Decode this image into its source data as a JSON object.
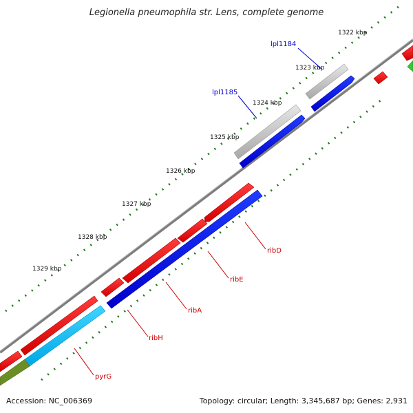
{
  "title": "Legionella pneumophila str. Lens, complete genome",
  "accession": "Accession: NC_006369",
  "topology": "Topology: circular; Length: 3,345,687 bp; Genes: 2,931",
  "colors": {
    "backbone": "#7a7a7a",
    "tick": "#1f7a1f",
    "cds_forward": "#ff0000",
    "cds_reverse": "#0000ff",
    "trna_or_other": "#b0b0b0",
    "pyrG_segment": "#00bfff",
    "olive_segment": "#6b8e23",
    "green_feature": "#33cc33",
    "label_blue": "#0000cc",
    "label_red": "#cc0000"
  },
  "tick_labels": [
    "1322 kbp",
    "1323 kbp",
    "1324 kbp",
    "1325 kbp",
    "1326 kbp",
    "1327 kbp",
    "1328 kbp",
    "1329 kbp"
  ],
  "gene_labels": [
    {
      "name": "lpl1184",
      "color": "blue"
    },
    {
      "name": "lpl1185",
      "color": "blue"
    },
    {
      "name": "ribD",
      "color": "red"
    },
    {
      "name": "ribE",
      "color": "red"
    },
    {
      "name": "ribA",
      "color": "red"
    },
    {
      "name": "ribH",
      "color": "red"
    },
    {
      "name": "pyrG",
      "color": "red"
    }
  ]
}
